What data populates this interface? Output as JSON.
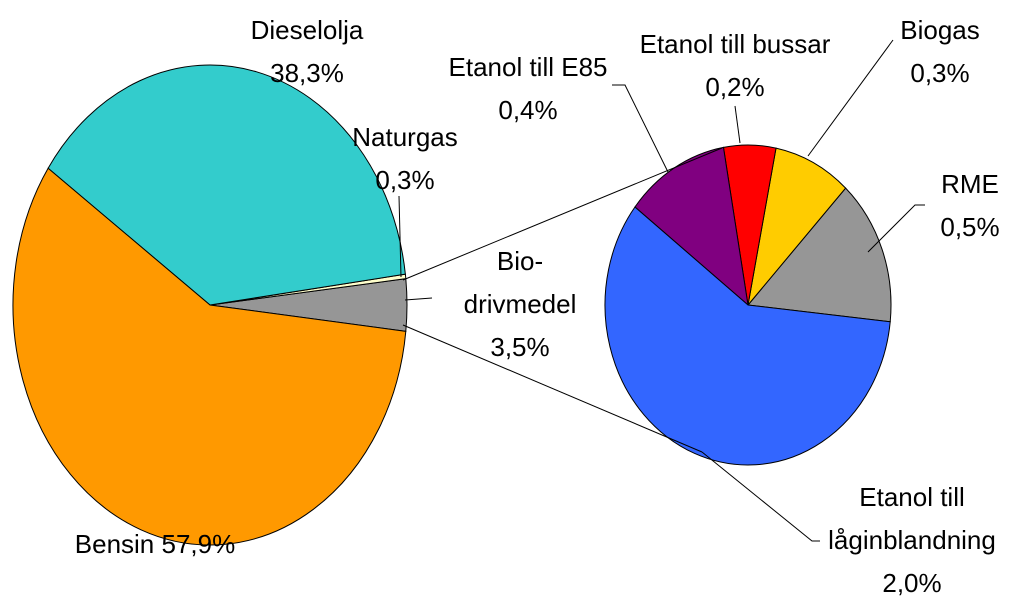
{
  "chart_data": [
    {
      "type": "pie",
      "categories": [
        "Biodrivmedel",
        "Naturgas",
        "Dieselolja",
        "Bensin"
      ],
      "labels": [
        "Bio-drivmedel",
        "Naturgas",
        "Dieselolja",
        "Bensin"
      ],
      "values": [
        3.5,
        0.3,
        38.3,
        57.9
      ],
      "value_labels": [
        "3,5%",
        "0,3%",
        "38,3%",
        "57,9%"
      ],
      "colors": [
        "#969696",
        "#ffffcc",
        "#33cccc",
        "#ff9900"
      ]
    },
    {
      "type": "pie",
      "categories": [
        "RME",
        "Biogas",
        "Etanol till bussar",
        "Etanol till E85",
        "Etanol till låginblandning"
      ],
      "values": [
        0.5,
        0.3,
        0.2,
        0.4,
        2.0
      ],
      "value_labels": [
        "0,5%",
        "0,3%",
        "0,2%",
        "0,4%",
        "2,0%"
      ],
      "colors": [
        "#969696",
        "#ffcc00",
        "#ff0000",
        "#800080",
        "#3366ff"
      ]
    }
  ]
}
